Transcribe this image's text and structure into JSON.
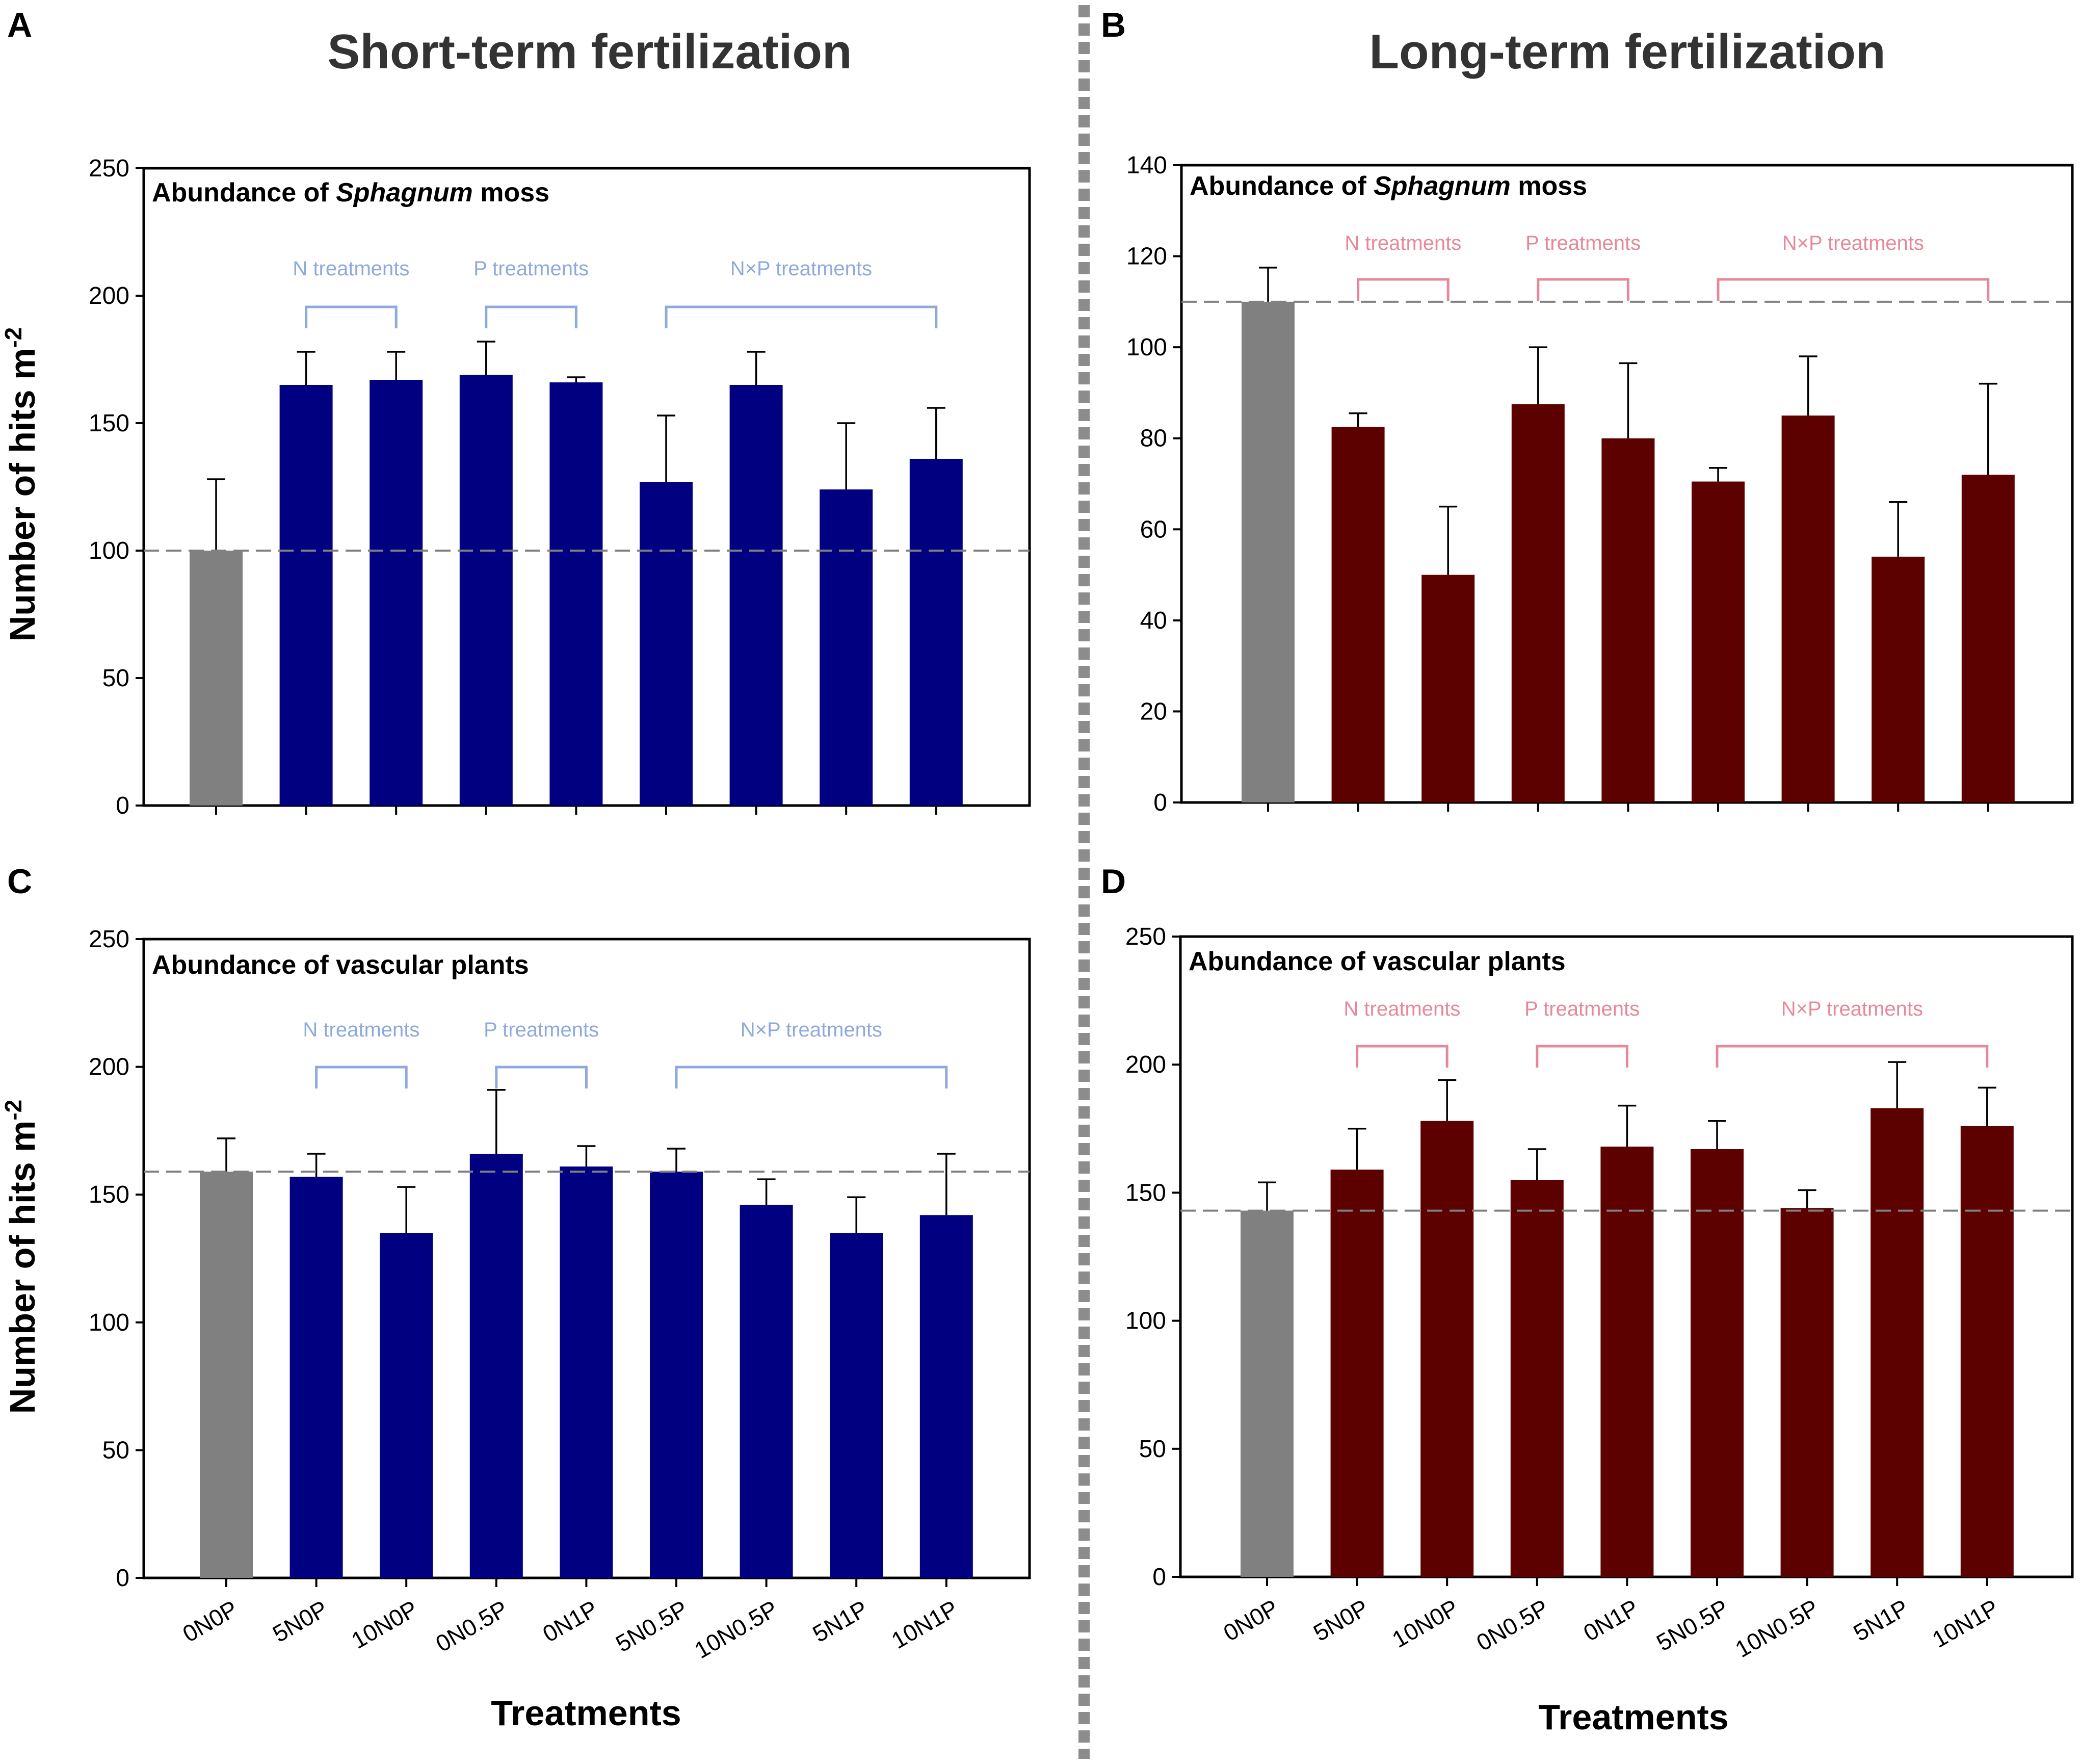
{
  "column_titles": {
    "left": "Short-term fertilization",
    "right": "Long-term fertilization"
  },
  "axis_titles": {
    "y": "Number of hits m",
    "y_superscript": "-2",
    "x": "Treatments"
  },
  "group_labels": {
    "n": "N treatments",
    "p": "P treatments",
    "np": "N×P treatments"
  },
  "colors": {
    "short_term": "#000080",
    "long_term": "#5C0000",
    "control": "#808080",
    "short_bracket": "#8EA9DB",
    "long_bracket": "#E68899",
    "reference_line": "#808080",
    "divider": "#8C8C8C"
  },
  "chart_data": [
    {
      "panel": "A",
      "type": "bar",
      "title_prefix": "Abundance of ",
      "title_italic": "Sphagnum",
      "title_suffix": " moss",
      "categories": [
        "0N0P",
        "5N0P",
        "10N0P",
        "0N0.5P",
        "0N1P",
        "5N0.5P",
        "10N0.5P",
        "5N1P",
        "10N1P"
      ],
      "values": [
        100,
        165,
        167,
        169,
        166,
        127,
        165,
        124,
        136
      ],
      "errors": [
        28,
        13,
        11,
        13,
        2,
        26,
        13,
        26,
        20
      ],
      "ylim": [
        0,
        250
      ],
      "yticks": [
        0,
        50,
        100,
        150,
        200,
        250
      ],
      "reference_line": 100,
      "show_category_labels": false
    },
    {
      "panel": "B",
      "type": "bar",
      "title_prefix": "Abundance of ",
      "title_italic": "Sphagnum",
      "title_suffix": " moss",
      "categories": [
        "0N0P",
        "5N0P",
        "10N0P",
        "0N0.5P",
        "0N1P",
        "5N0.5P",
        "10N0.5P",
        "5N1P",
        "10N1P"
      ],
      "values": [
        110,
        82.5,
        50,
        87.5,
        80,
        70.5,
        85,
        54,
        72
      ],
      "errors": [
        7.5,
        3,
        15,
        12.5,
        16.5,
        3,
        13,
        12,
        20
      ],
      "ylim": [
        0,
        140
      ],
      "yticks": [
        0,
        20,
        40,
        60,
        80,
        100,
        120,
        140
      ],
      "reference_line": 110,
      "show_category_labels": false
    },
    {
      "panel": "C",
      "type": "bar",
      "title_prefix": "Abundance of vascular plants",
      "title_italic": "",
      "title_suffix": "",
      "categories": [
        "0N0P",
        "5N0P",
        "10N0P",
        "0N0.5P",
        "0N1P",
        "5N0.5P",
        "10N0.5P",
        "5N1P",
        "10N1P"
      ],
      "values": [
        159,
        157,
        135,
        166,
        161,
        159,
        146,
        135,
        142
      ],
      "errors": [
        13,
        9,
        18,
        25,
        8,
        9,
        10,
        14,
        24
      ],
      "ylim": [
        0,
        250
      ],
      "yticks": [
        0,
        50,
        100,
        150,
        200,
        250
      ],
      "reference_line": 159,
      "show_category_labels": true
    },
    {
      "panel": "D",
      "type": "bar",
      "title_prefix": "Abundance of vascular plants",
      "title_italic": "",
      "title_suffix": "",
      "categories": [
        "0N0P",
        "5N0P",
        "10N0P",
        "0N0.5P",
        "0N1P",
        "5N0.5P",
        "10N0.5P",
        "5N1P",
        "10N1P"
      ],
      "values": [
        143,
        159,
        178,
        155,
        168,
        167,
        144,
        183,
        176
      ],
      "errors": [
        11,
        16,
        16,
        12,
        16,
        11,
        7,
        18,
        15
      ],
      "ylim": [
        0,
        250
      ],
      "yticks": [
        0,
        50,
        100,
        150,
        200,
        250
      ],
      "reference_line": 143,
      "show_category_labels": true
    }
  ]
}
